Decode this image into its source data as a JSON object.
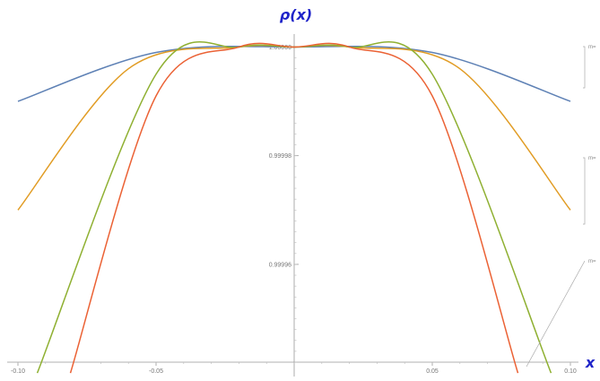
{
  "chart_data": {
    "type": "line",
    "title": "",
    "xlabel": "x",
    "ylabel": "ρ(x)",
    "xlim": [
      -0.1,
      0.1
    ],
    "ylim": [
      0.999942,
      1.0000009
    ],
    "x_ticks": [
      "-0.10",
      "-0.05",
      "0.05",
      "0.10"
    ],
    "y_ticks": [
      "1.00000",
      "0.99998",
      "0.99996"
    ],
    "colors": [
      "#5e81b5",
      "#e19c24",
      "#8fb032",
      "#eb6235"
    ],
    "series": [
      {
        "callout": "m=",
        "x": [
          -0.1,
          -0.05,
          0,
          0.05,
          0.1
        ],
        "y": [
          0.99999,
          0.999999,
          1.0,
          0.999999,
          0.99999
        ]
      },
      {
        "callout": "m=",
        "x": [
          -0.1,
          -0.06,
          -0.02,
          0,
          0.02,
          0.06,
          0.1
        ],
        "y": [
          0.99997,
          0.999996,
          1.0,
          1.0,
          1.0,
          0.999996,
          0.99997
        ]
      },
      {
        "callout": "m=",
        "x": [
          -0.093,
          -0.05,
          -0.02,
          0,
          0.02,
          0.05,
          0.093
        ],
        "y": [
          0.99994,
          0.999995,
          1.0,
          1.0,
          1.0,
          0.999995,
          0.99994
        ]
      },
      {
        "callout": "",
        "x": [
          -0.081,
          -0.05,
          -0.02,
          0,
          0.02,
          0.05,
          0.081
        ],
        "y": [
          0.99994,
          0.999991,
          1.0,
          1.0,
          1.0,
          0.999991,
          0.99994
        ]
      }
    ]
  }
}
